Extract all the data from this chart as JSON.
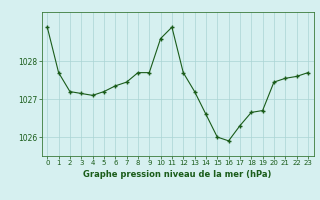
{
  "x": [
    0,
    1,
    2,
    3,
    4,
    5,
    6,
    7,
    8,
    9,
    10,
    11,
    12,
    13,
    14,
    15,
    16,
    17,
    18,
    19,
    20,
    21,
    22,
    23
  ],
  "y": [
    1028.9,
    1027.7,
    1027.2,
    1027.15,
    1027.1,
    1027.2,
    1027.35,
    1027.45,
    1027.7,
    1027.7,
    1028.6,
    1028.9,
    1027.7,
    1027.2,
    1026.6,
    1026.0,
    1025.9,
    1026.3,
    1026.65,
    1026.7,
    1027.45,
    1027.55,
    1027.6,
    1027.7
  ],
  "line_color": "#1a5c1a",
  "marker": "+",
  "marker_size": 3.5,
  "marker_linewidth": 1.0,
  "line_width": 0.8,
  "bg_color": "#d6f0f0",
  "grid_color": "#aad4d4",
  "axis_color": "#3a7a3a",
  "xlabel": "Graphe pression niveau de la mer (hPa)",
  "xlabel_color": "#1a5c1a",
  "tick_color": "#1a5c1a",
  "ylim": [
    1025.5,
    1029.3
  ],
  "xlim": [
    -0.5,
    23.5
  ],
  "yticks": [
    1026,
    1027,
    1028
  ],
  "xticks": [
    0,
    1,
    2,
    3,
    4,
    5,
    6,
    7,
    8,
    9,
    10,
    11,
    12,
    13,
    14,
    15,
    16,
    17,
    18,
    19,
    20,
    21,
    22,
    23
  ],
  "tick_fontsize": 5.0,
  "ytick_fontsize": 5.5,
  "xlabel_fontsize": 6.0
}
